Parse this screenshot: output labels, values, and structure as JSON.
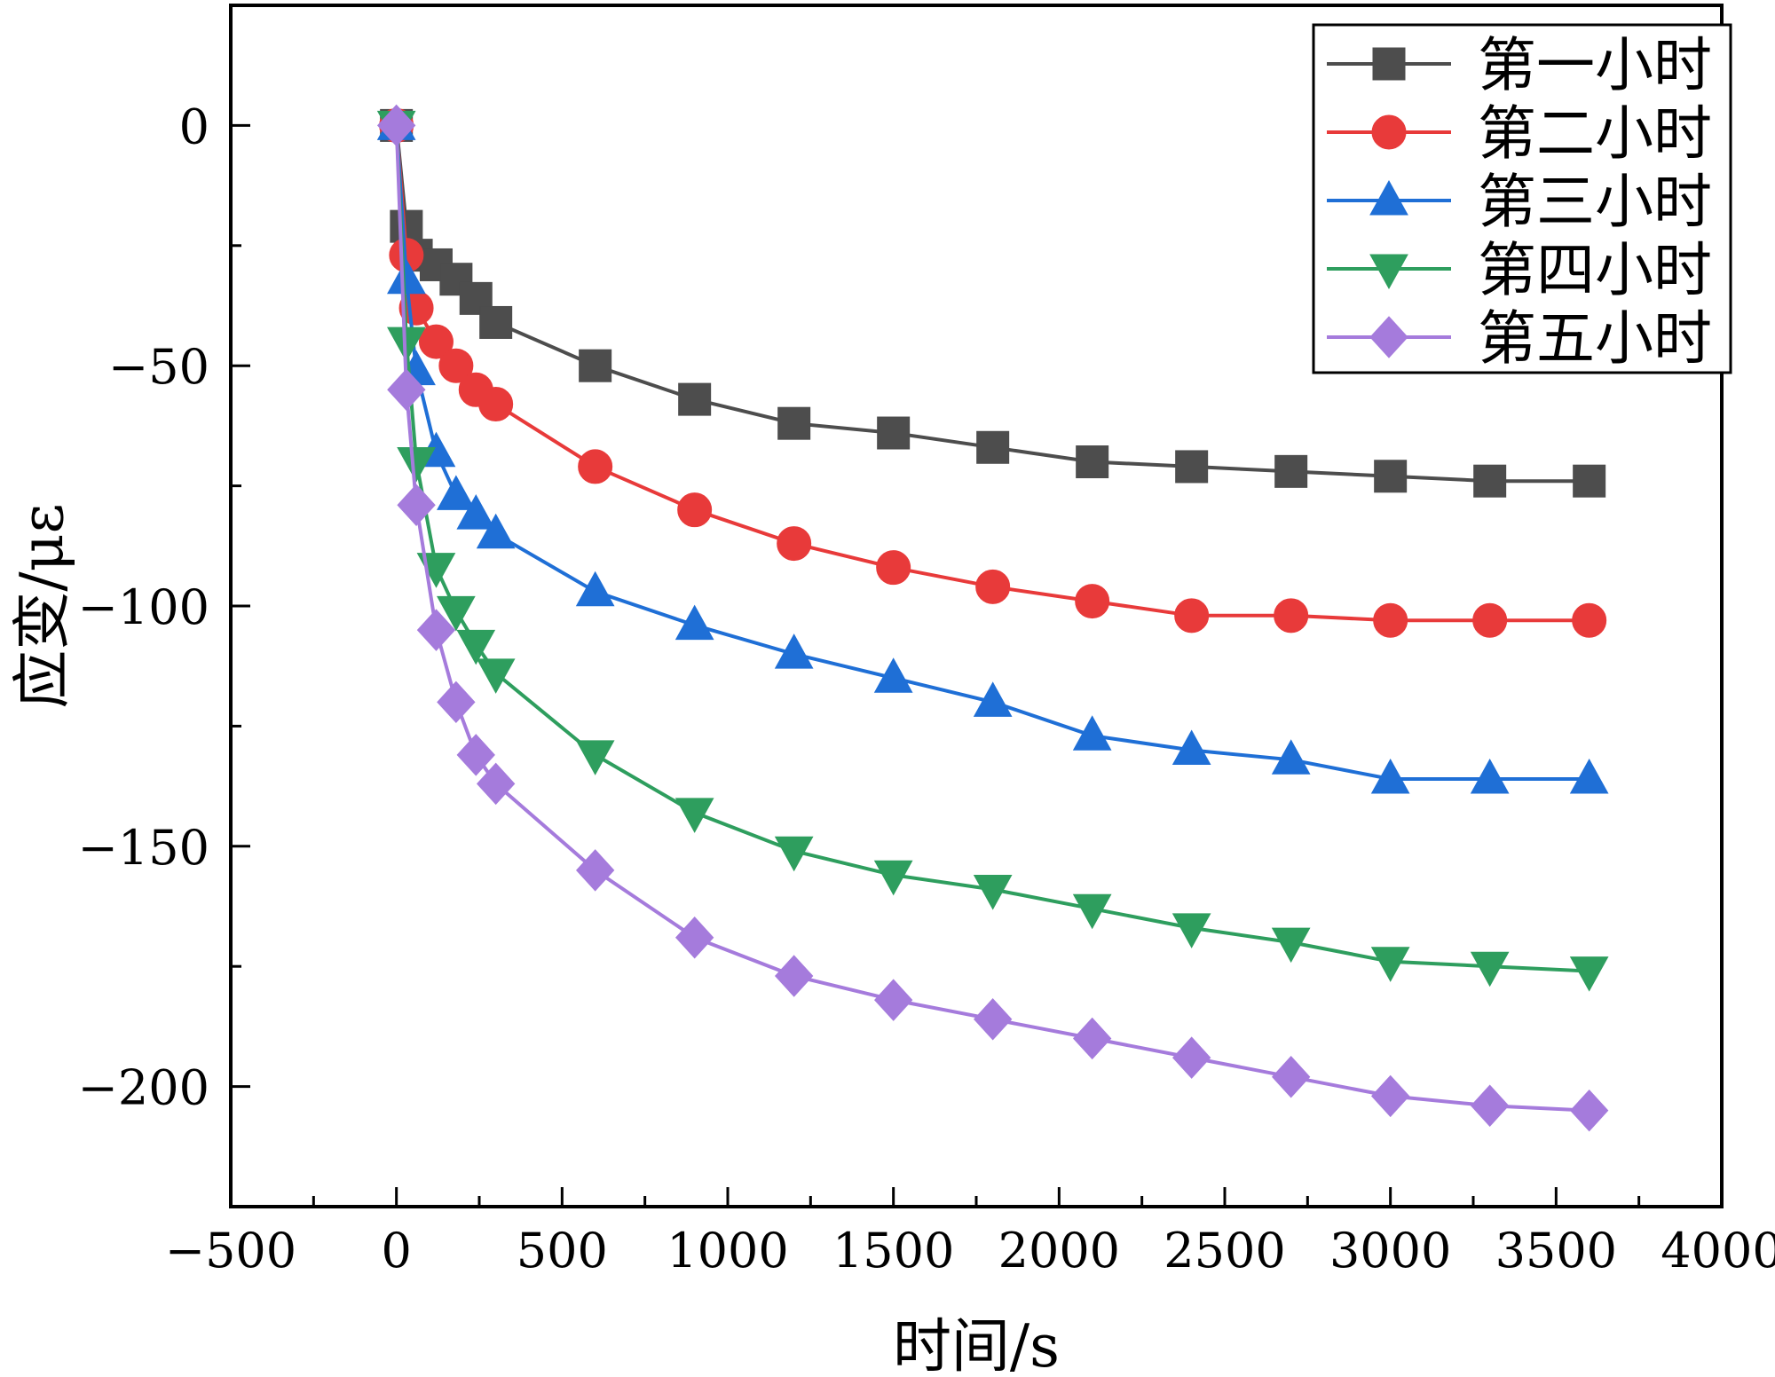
{
  "chart_data": {
    "type": "line",
    "title": "",
    "xlabel": "时间/s",
    "ylabel": "应变/με",
    "xlim": [
      -500,
      4000
    ],
    "ylim": [
      -225,
      25
    ],
    "xticks": [
      -500,
      0,
      500,
      1000,
      1500,
      2000,
      2500,
      3000,
      3500,
      4000
    ],
    "xtick_labels": [
      "−500",
      "0",
      "500",
      "1000",
      "1500",
      "2000",
      "2500",
      "3000",
      "3500",
      "4000"
    ],
    "yticks": [
      0,
      -50,
      -100,
      -150,
      -200
    ],
    "ytick_labels": [
      "0",
      "−50",
      "−100",
      "−150",
      "−200"
    ],
    "grid": false,
    "legend_position": "top-right",
    "x": [
      0,
      30,
      60,
      120,
      180,
      240,
      300,
      600,
      900,
      1200,
      1500,
      1800,
      2100,
      2400,
      2700,
      3000,
      3300,
      3600
    ],
    "series": [
      {
        "name": "第一小时",
        "color": "#4d4d4d",
        "marker": "square",
        "values": [
          0,
          -21,
          -27,
          -29,
          -32,
          -36,
          -41,
          -50,
          -57,
          -62,
          -64,
          -67,
          -70,
          -71,
          -72,
          -73,
          -74,
          -74
        ]
      },
      {
        "name": "第二小时",
        "color": "#e83a3a",
        "marker": "circle",
        "values": [
          0,
          -27,
          -38,
          -45,
          -50,
          -55,
          -58,
          -71,
          -80,
          -87,
          -92,
          -96,
          -99,
          -102,
          -102,
          -103,
          -103,
          -103
        ]
      },
      {
        "name": "第三小时",
        "color": "#1f6fd6",
        "marker": "triangle-up",
        "values": [
          0,
          -32,
          -51,
          -68,
          -77,
          -81,
          -85,
          -97,
          -104,
          -110,
          -115,
          -120,
          -127,
          -130,
          -132,
          -136,
          -136,
          -136
        ]
      },
      {
        "name": "第四小时",
        "color": "#2e9e5e",
        "marker": "triangle-down",
        "values": [
          0,
          -45,
          -70,
          -92,
          -101,
          -108,
          -114,
          -131,
          -143,
          -151,
          -156,
          -159,
          -163,
          -167,
          -170,
          -174,
          -175,
          -176
        ]
      },
      {
        "name": "第五小时",
        "color": "#a57bdc",
        "marker": "diamond",
        "values": [
          0,
          -55,
          -79,
          -105,
          -120,
          -131,
          -137,
          -155,
          -169,
          -177,
          -182,
          -186,
          -190,
          -194,
          -198,
          -202,
          -204,
          -205
        ]
      }
    ]
  }
}
